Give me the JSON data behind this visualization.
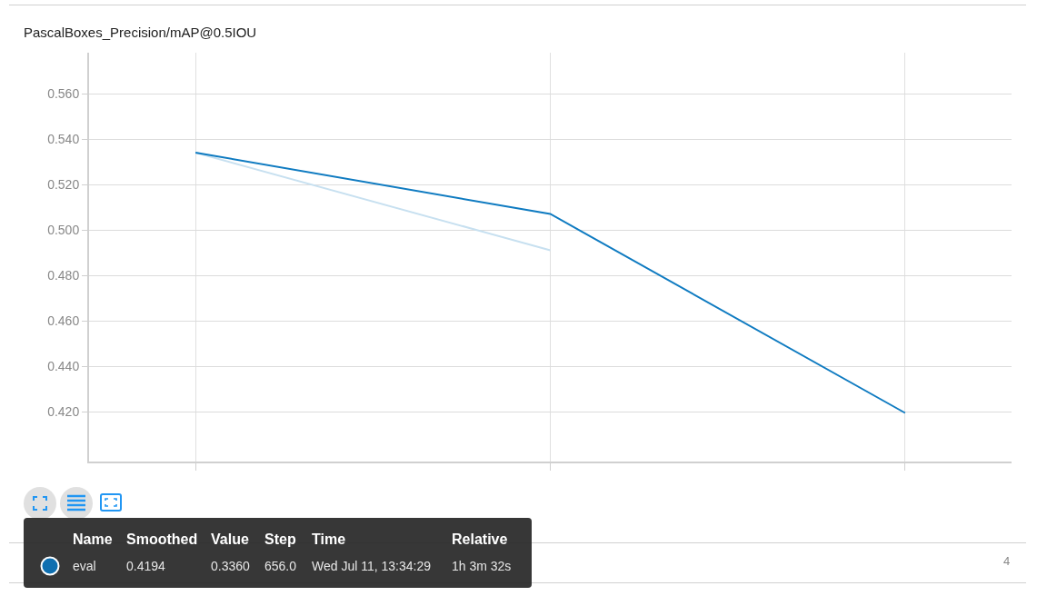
{
  "chart_data": {
    "type": "line",
    "title": "PascalBoxes_Precision/mAP@0.5IOU",
    "categories": [
      null,
      null,
      null
    ],
    "series": [
      {
        "color": "#c7e0f0",
        "values": [
          0.534,
          0.491,
          null
        ]
      },
      {
        "color": "#0f7bc1",
        "values": [
          0.534,
          0.507,
          0.4194
        ]
      }
    ],
    "ylim": [
      0.398,
      0.578
    ],
    "yticks": [
      {
        "value": 0.42,
        "label": "0.420"
      },
      {
        "value": 0.44,
        "label": "0.440"
      },
      {
        "value": 0.46,
        "label": "0.460"
      },
      {
        "value": 0.48,
        "label": "0.480"
      },
      {
        "value": 0.5,
        "label": "0.500"
      },
      {
        "value": 0.52,
        "label": "0.520"
      },
      {
        "value": 0.54,
        "label": "0.540"
      },
      {
        "value": 0.56,
        "label": "0.560"
      }
    ],
    "grid": true,
    "marker": "none",
    "line_style": "solid",
    "annotations": [
      "Name",
      "Smoothed",
      "Value",
      "Step",
      "Time",
      "Relative",
      "eval",
      "0.4194",
      "0.3360",
      "656.0",
      "Wed Jul 11, 13:34:29",
      "1h 3m 32s",
      "4"
    ]
  }
}
